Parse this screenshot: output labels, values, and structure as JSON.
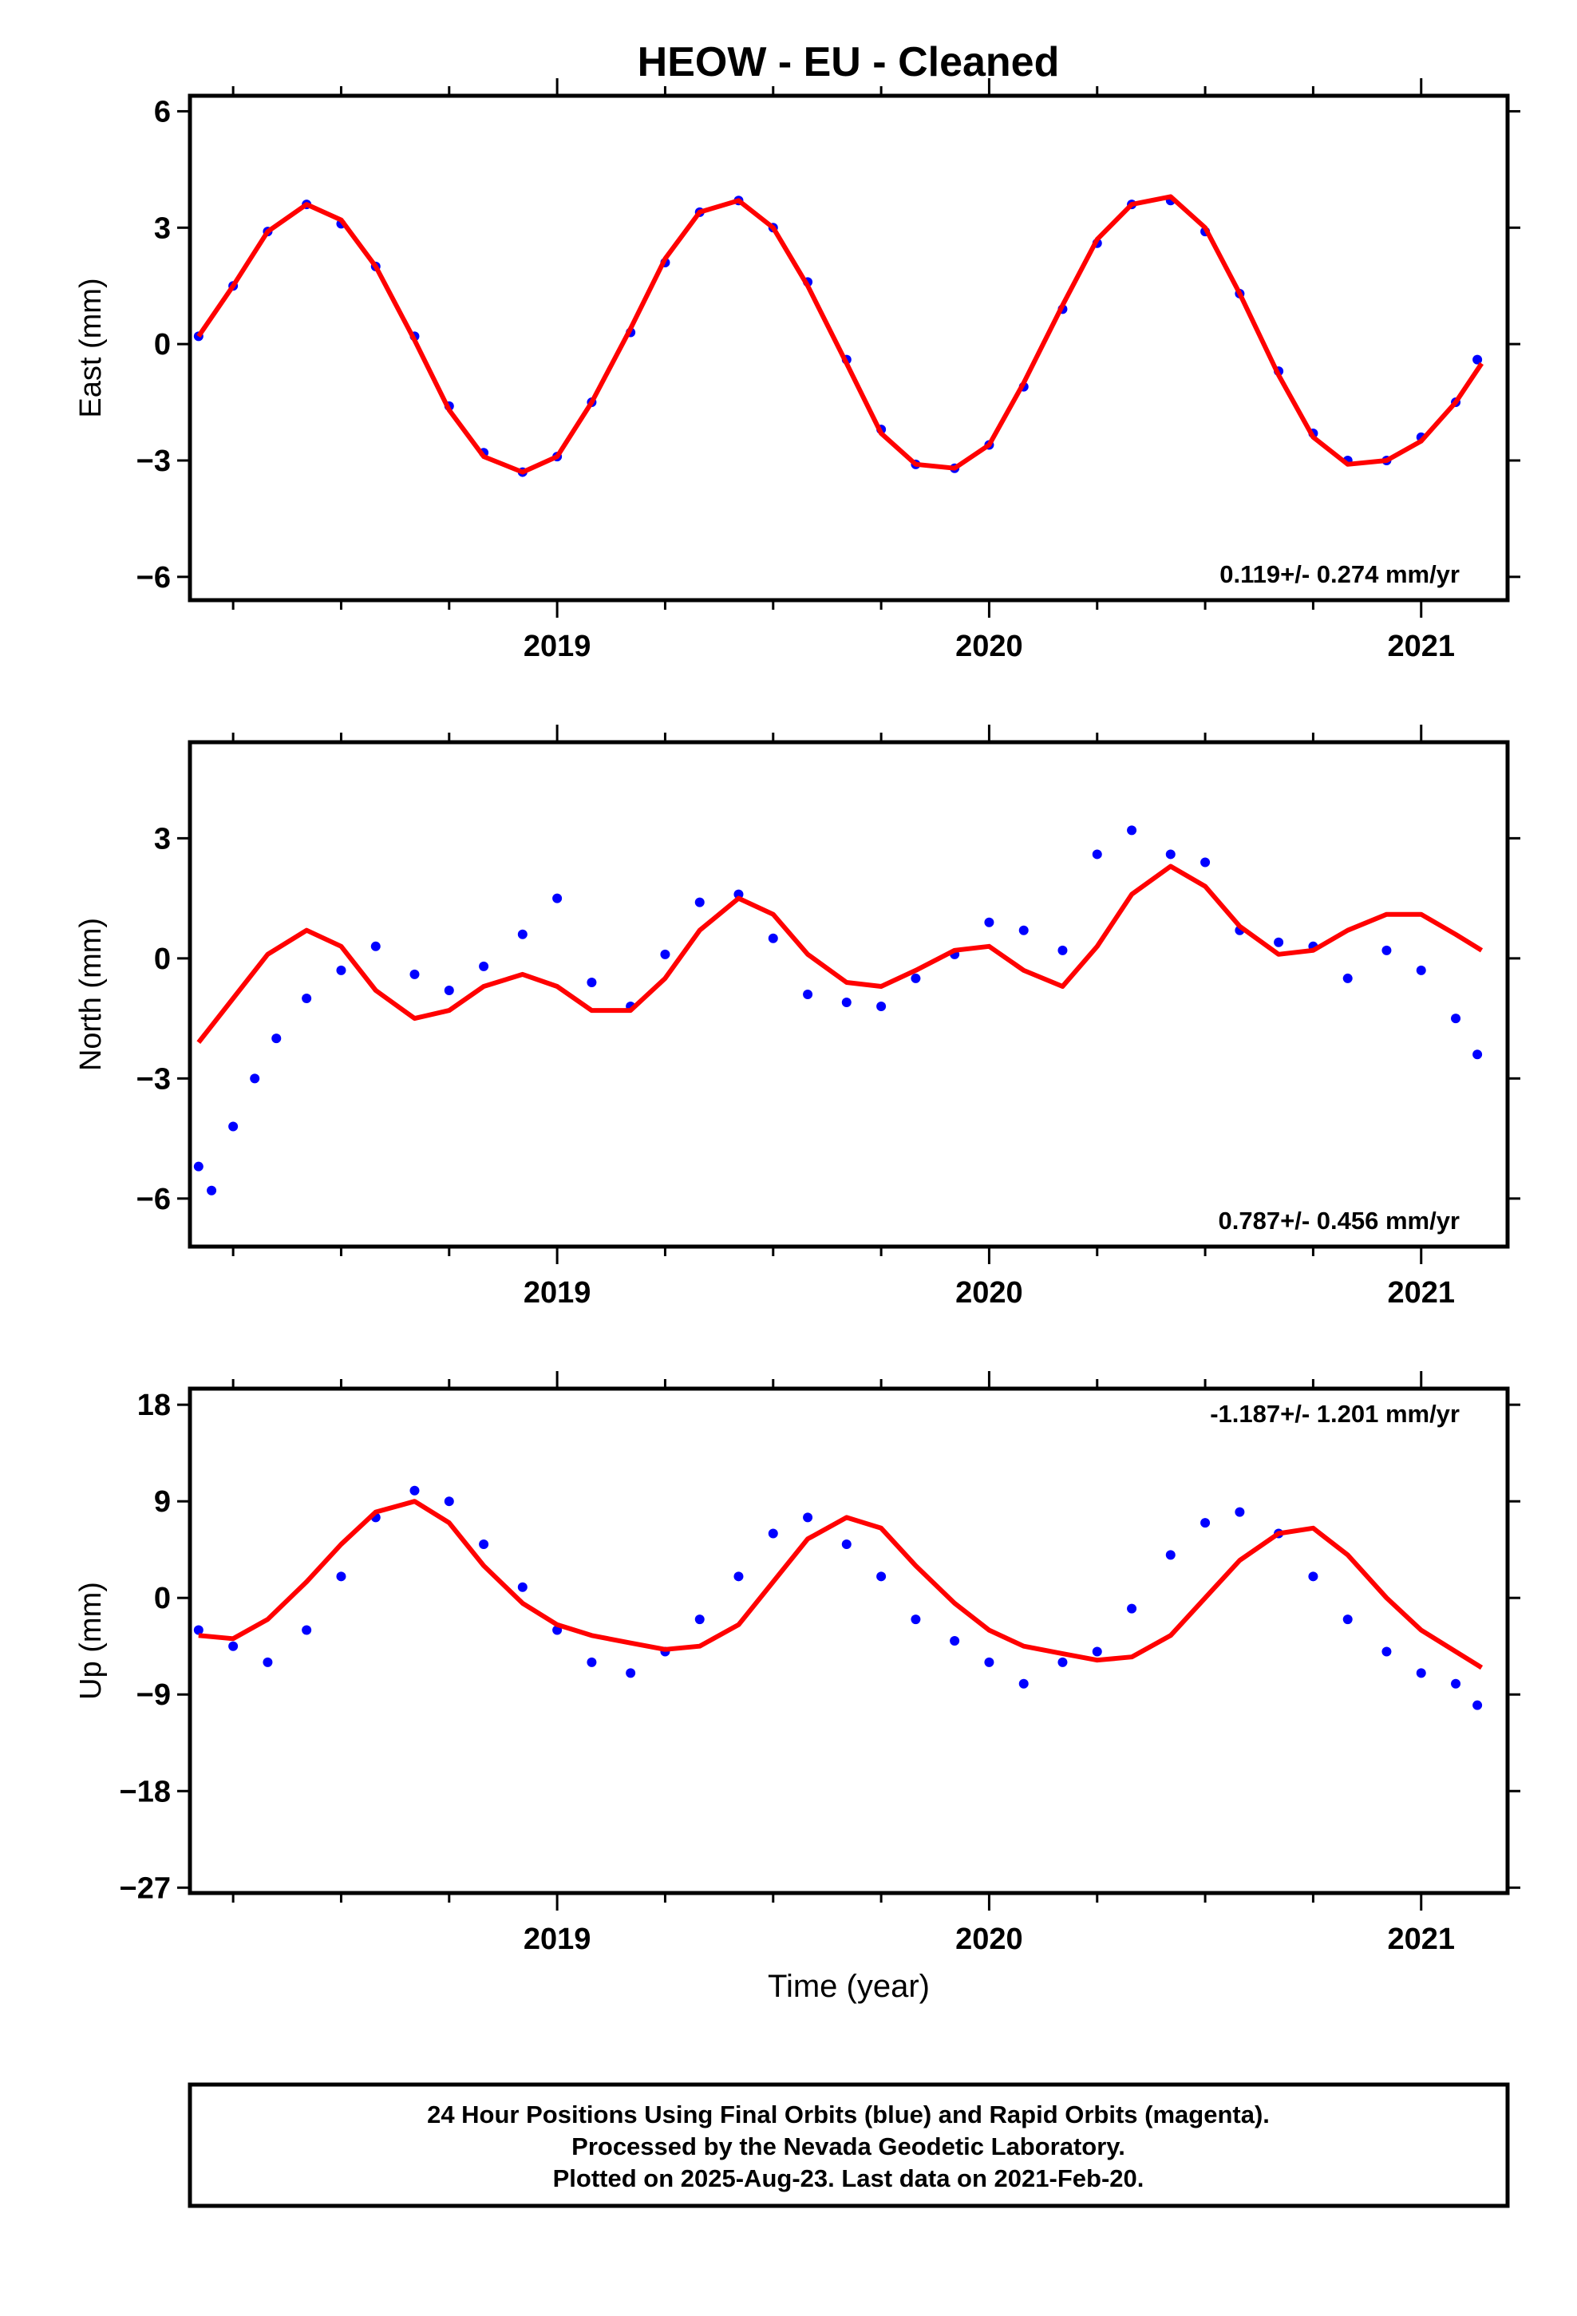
{
  "chart_data": [
    {
      "type": "scatter",
      "title": "HEOW  - EU - Cleaned",
      "ylabel": "East (mm)",
      "xlabel": "",
      "xlim": [
        2018.15,
        2021.2
      ],
      "ylim": [
        -6.6,
        6.4
      ],
      "yticks": [
        6,
        3,
        0,
        -3,
        -6
      ],
      "ytick_labels": [
        "6",
        "3",
        "0",
        "−3",
        "−6"
      ],
      "xticks": [
        2019,
        2020,
        2021
      ],
      "xtick_labels": [
        "2019",
        "2020",
        "2021"
      ],
      "rate_text": "0.119+/- 0.274 mm/yr",
      "rate_position": "bottom-right",
      "series": [
        {
          "kind": "points",
          "color": "#0000ff",
          "x": [
            2018.17,
            2018.25,
            2018.33,
            2018.42,
            2018.5,
            2018.58,
            2018.67,
            2018.75,
            2018.83,
            2018.92,
            2019.0,
            2019.08,
            2019.17,
            2019.25,
            2019.33,
            2019.42,
            2019.5,
            2019.58,
            2019.67,
            2019.75,
            2019.83,
            2019.92,
            2020.0,
            2020.08,
            2020.17,
            2020.25,
            2020.33,
            2020.42,
            2020.5,
            2020.58,
            2020.67,
            2020.75,
            2020.83,
            2020.92,
            2021.0,
            2021.08,
            2021.13
          ],
          "y": [
            0.2,
            1.5,
            2.9,
            3.6,
            3.1,
            2.0,
            0.2,
            -1.6,
            -2.8,
            -3.3,
            -2.9,
            -1.5,
            0.3,
            2.1,
            3.4,
            3.7,
            3.0,
            1.6,
            -0.4,
            -2.2,
            -3.1,
            -3.2,
            -2.6,
            -1.1,
            0.9,
            2.6,
            3.6,
            3.7,
            2.9,
            1.3,
            -0.7,
            -2.3,
            -3.0,
            -3.0,
            -2.4,
            -1.5,
            -0.4
          ]
        },
        {
          "kind": "fit",
          "color": "#ff0000",
          "x": [
            2018.17,
            2018.25,
            2018.33,
            2018.42,
            2018.5,
            2018.58,
            2018.67,
            2018.75,
            2018.83,
            2018.92,
            2019.0,
            2019.08,
            2019.17,
            2019.25,
            2019.33,
            2019.42,
            2019.5,
            2019.58,
            2019.67,
            2019.75,
            2019.83,
            2019.92,
            2020.0,
            2020.08,
            2020.17,
            2020.25,
            2020.33,
            2020.42,
            2020.5,
            2020.58,
            2020.67,
            2020.75,
            2020.83,
            2020.92,
            2021.0,
            2021.08,
            2021.14
          ],
          "y": [
            0.2,
            1.5,
            2.9,
            3.6,
            3.2,
            2.0,
            0.1,
            -1.7,
            -2.9,
            -3.3,
            -2.9,
            -1.5,
            0.4,
            2.2,
            3.4,
            3.7,
            3.0,
            1.5,
            -0.5,
            -2.3,
            -3.1,
            -3.2,
            -2.6,
            -1.0,
            1.0,
            2.7,
            3.6,
            3.8,
            3.0,
            1.3,
            -0.8,
            -2.4,
            -3.1,
            -3.0,
            -2.5,
            -1.5,
            -0.5
          ]
        }
      ]
    },
    {
      "type": "scatter",
      "ylabel": "North (mm)",
      "xlabel": "",
      "xlim": [
        2018.15,
        2021.2
      ],
      "ylim": [
        -7.2,
        5.4
      ],
      "yticks": [
        3,
        0,
        -3,
        -6
      ],
      "ytick_labels": [
        "3",
        "0",
        "−3",
        "−6"
      ],
      "xticks": [
        2019,
        2020,
        2021
      ],
      "xtick_labels": [
        "2019",
        "2020",
        "2021"
      ],
      "rate_text": "0.787+/- 0.456 mm/yr",
      "rate_position": "bottom-right",
      "series": [
        {
          "kind": "points",
          "color": "#0000ff",
          "x": [
            2018.17,
            2018.2,
            2018.25,
            2018.3,
            2018.35,
            2018.42,
            2018.5,
            2018.58,
            2018.67,
            2018.75,
            2018.83,
            2018.92,
            2019.0,
            2019.08,
            2019.17,
            2019.25,
            2019.33,
            2019.42,
            2019.5,
            2019.58,
            2019.67,
            2019.75,
            2019.83,
            2019.92,
            2020.0,
            2020.08,
            2020.17,
            2020.25,
            2020.33,
            2020.42,
            2020.5,
            2020.58,
            2020.67,
            2020.75,
            2020.83,
            2020.92,
            2021.0,
            2021.08,
            2021.13
          ],
          "y": [
            -5.2,
            -5.8,
            -4.2,
            -3.0,
            -2.0,
            -1.0,
            -0.3,
            0.3,
            -0.4,
            -0.8,
            -0.2,
            0.6,
            1.5,
            -0.6,
            -1.2,
            0.1,
            1.4,
            1.6,
            0.5,
            -0.9,
            -1.1,
            -1.2,
            -0.5,
            0.1,
            0.9,
            0.7,
            0.2,
            2.6,
            3.2,
            2.6,
            2.4,
            0.7,
            0.4,
            0.3,
            -0.5,
            0.2,
            -0.3,
            -1.5,
            -2.4
          ]
        },
        {
          "kind": "fit",
          "color": "#ff0000",
          "x": [
            2018.17,
            2018.25,
            2018.33,
            2018.42,
            2018.5,
            2018.58,
            2018.67,
            2018.75,
            2018.83,
            2018.92,
            2019.0,
            2019.08,
            2019.17,
            2019.25,
            2019.33,
            2019.42,
            2019.5,
            2019.58,
            2019.67,
            2019.75,
            2019.83,
            2019.92,
            2020.0,
            2020.08,
            2020.17,
            2020.25,
            2020.33,
            2020.42,
            2020.5,
            2020.58,
            2020.67,
            2020.75,
            2020.83,
            2020.92,
            2021.0,
            2021.08,
            2021.14
          ],
          "y": [
            -2.1,
            -1.0,
            0.1,
            0.7,
            0.3,
            -0.8,
            -1.5,
            -1.3,
            -0.7,
            -0.4,
            -0.7,
            -1.3,
            -1.3,
            -0.5,
            0.7,
            1.5,
            1.1,
            0.1,
            -0.6,
            -0.7,
            -0.3,
            0.2,
            0.3,
            -0.3,
            -0.7,
            0.3,
            1.6,
            2.3,
            1.8,
            0.8,
            0.1,
            0.2,
            0.7,
            1.1,
            1.1,
            0.6,
            0.2
          ]
        }
      ]
    },
    {
      "type": "scatter",
      "ylabel": "Up (mm)",
      "xlabel": "Time (year)",
      "xlim": [
        2018.15,
        2021.2
      ],
      "ylim": [
        -27.5,
        19.5
      ],
      "yticks": [
        18,
        9,
        0,
        -9,
        -18,
        -27
      ],
      "ytick_labels": [
        "18",
        "9",
        "0",
        "−9",
        "−18",
        "−27"
      ],
      "xticks": [
        2019,
        2020,
        2021
      ],
      "xtick_labels": [
        "2019",
        "2020",
        "2021"
      ],
      "rate_text": "-1.187+/- 1.201 mm/yr",
      "rate_position": "top-right",
      "series": [
        {
          "kind": "points",
          "color": "#0000ff",
          "x": [
            2018.17,
            2018.25,
            2018.33,
            2018.42,
            2018.5,
            2018.58,
            2018.67,
            2018.75,
            2018.83,
            2018.92,
            2019.0,
            2019.08,
            2019.17,
            2019.25,
            2019.33,
            2019.42,
            2019.5,
            2019.58,
            2019.67,
            2019.75,
            2019.83,
            2019.92,
            2020.0,
            2020.08,
            2020.17,
            2020.25,
            2020.33,
            2020.42,
            2020.5,
            2020.58,
            2020.67,
            2020.75,
            2020.83,
            2020.92,
            2021.0,
            2021.08,
            2021.13
          ],
          "y": [
            -3.0,
            -4.5,
            -6.0,
            -3.0,
            2.0,
            7.5,
            10.0,
            9.0,
            5.0,
            1.0,
            -3.0,
            -6.0,
            -7.0,
            -5.0,
            -2.0,
            2.0,
            6.0,
            7.5,
            5.0,
            2.0,
            -2.0,
            -4.0,
            -6.0,
            -8.0,
            -6.0,
            -5.0,
            -1.0,
            4.0,
            7.0,
            8.0,
            6.0,
            2.0,
            -2.0,
            -5.0,
            -7.0,
            -8.0,
            -10.0
          ]
        },
        {
          "kind": "fit",
          "color": "#ff0000",
          "x": [
            2018.17,
            2018.25,
            2018.33,
            2018.42,
            2018.5,
            2018.58,
            2018.67,
            2018.75,
            2018.83,
            2018.92,
            2019.0,
            2019.08,
            2019.17,
            2019.25,
            2019.33,
            2019.42,
            2019.5,
            2019.58,
            2019.67,
            2019.75,
            2019.83,
            2019.92,
            2020.0,
            2020.08,
            2020.17,
            2020.25,
            2020.33,
            2020.42,
            2020.5,
            2020.58,
            2020.67,
            2020.75,
            2020.83,
            2020.92,
            2021.0,
            2021.08,
            2021.14
          ],
          "y": [
            -3.5,
            -3.8,
            -2.0,
            1.5,
            5.0,
            8.0,
            9.0,
            7.0,
            3.0,
            -0.5,
            -2.5,
            -3.5,
            -4.2,
            -4.8,
            -4.5,
            -2.5,
            1.5,
            5.5,
            7.5,
            6.5,
            3.0,
            -0.5,
            -3.0,
            -4.5,
            -5.2,
            -5.8,
            -5.5,
            -3.5,
            0.0,
            3.5,
            6.0,
            6.5,
            4.0,
            0.0,
            -3.0,
            -5.0,
            -6.5
          ]
        }
      ]
    }
  ],
  "caption": {
    "line1": "24 Hour Positions Using Final Orbits (blue) and Rapid Orbits (magenta).",
    "line2": "Processed by the Nevada Geodetic Laboratory.",
    "line3": "Plotted on 2025-Aug-23. Last data on 2021-Feb-20."
  },
  "colors": {
    "points": "#0000ff",
    "fit": "#ff0000",
    "frame": "#000000"
  }
}
